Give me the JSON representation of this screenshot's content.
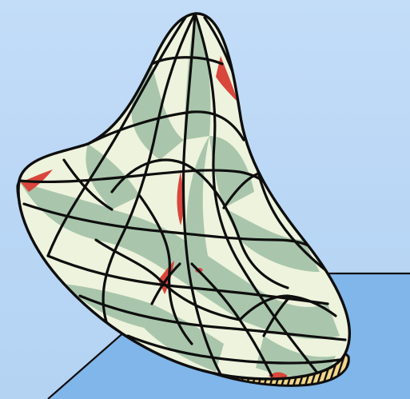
{
  "colors": {
    "sky": "#bcd8f6",
    "floor": "#7fb4e8",
    "outline": "#0e0e0e",
    "patch_light": "#eef3dd",
    "patch_mid": "#a9c6ac",
    "accent_red": "#d9463b",
    "rim_yellow": "#f2d68a"
  },
  "illustration": {
    "subject": "bell-shaped-surface",
    "style": "stained-glass"
  }
}
